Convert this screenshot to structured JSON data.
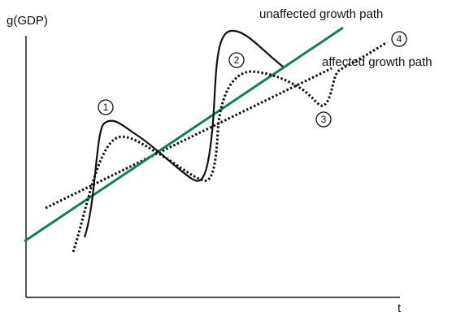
{
  "diagram": {
    "y_axis_label": "g(GDP)",
    "x_axis_label": "t",
    "labels": {
      "unaffected": "unaffected growth path",
      "affected": "affected growth path"
    },
    "markers": [
      "1",
      "2",
      "3",
      "4"
    ],
    "colors": {
      "unaffected_line": "#1a7a5e",
      "ink": "#111111"
    }
  }
}
